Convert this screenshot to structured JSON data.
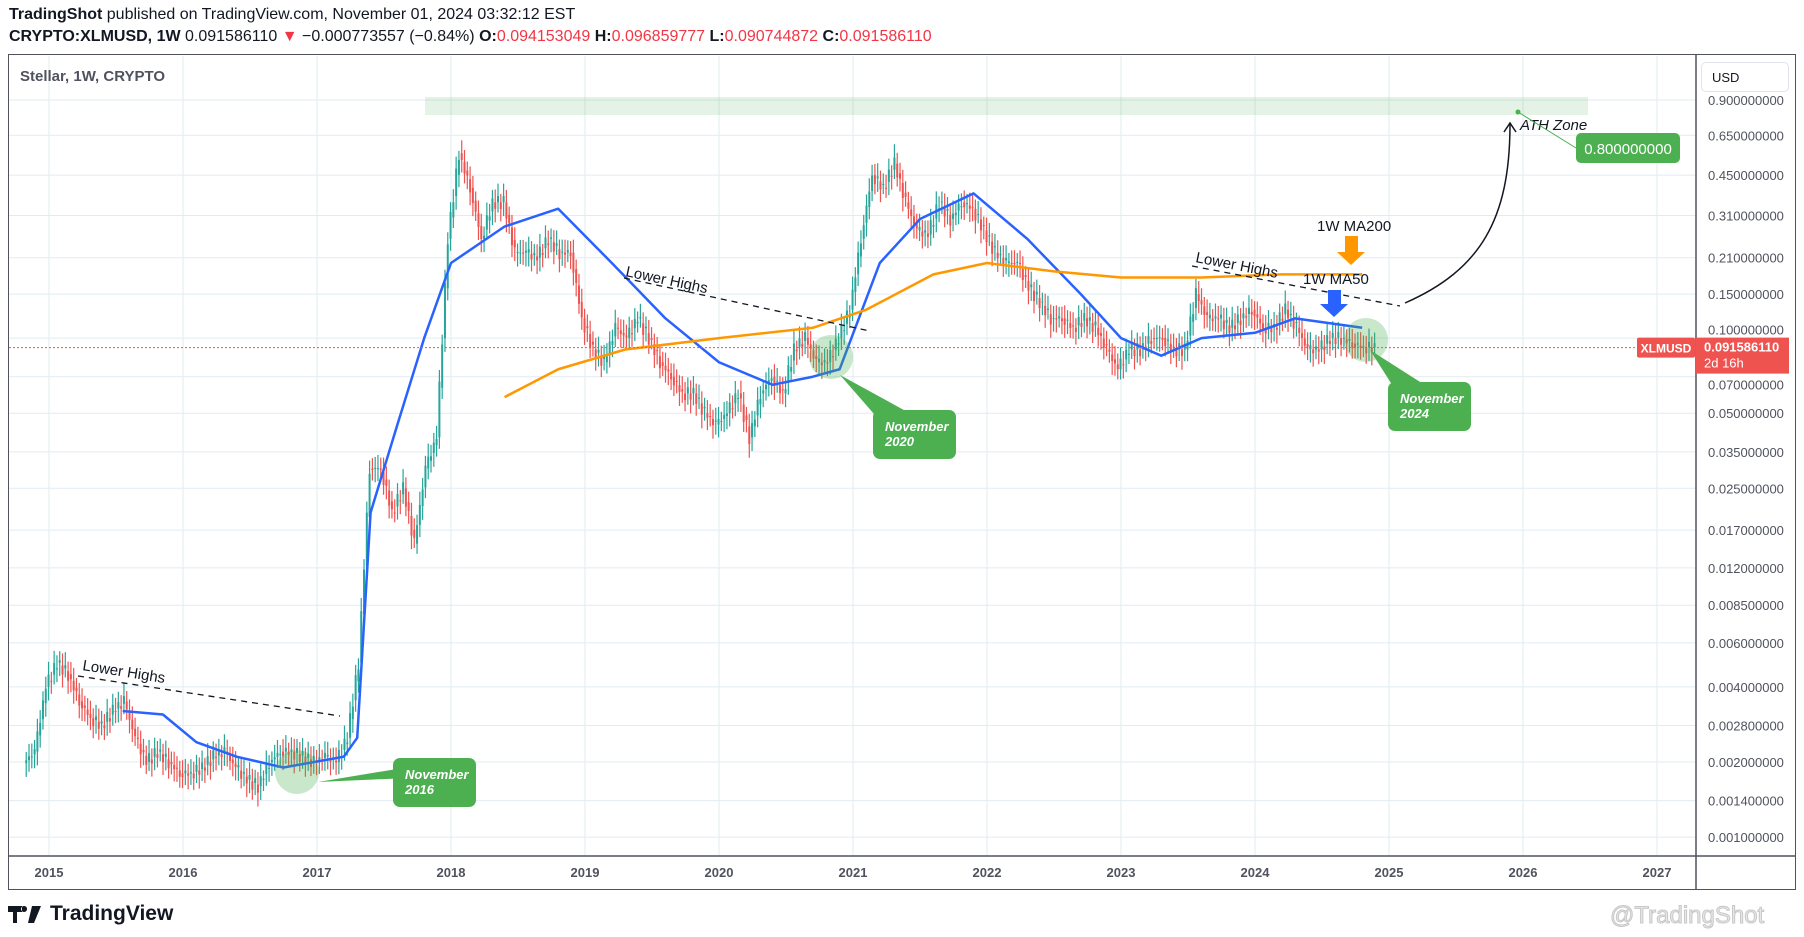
{
  "header": {
    "author": "TradingShot",
    "published": "published on TradingView.com, November 01, 2024 03:32:12 EST",
    "symbol": "CRYPTO:XLMUSD, 1W",
    "last": "0.091586110",
    "change": "−0.000773557 (−0.84%)",
    "o_label": "O:",
    "o": "0.094153049",
    "h_label": "H:",
    "h": "0.096859777",
    "l_label": "L:",
    "l": "0.090744872",
    "c_label": "C:",
    "c": "0.091586110"
  },
  "chart_title": "Stellar, 1W, CRYPTO",
  "currency": "USD",
  "logo": "TradingView",
  "watermark": "@TradingShot",
  "price_tag": {
    "symbol": "XLMUSD",
    "price": "0.091586110",
    "countdown": "2d 16h"
  },
  "colors": {
    "up": "#26a69a",
    "down": "#ef5350",
    "ma50": "#2962ff",
    "ma200": "#ff9800",
    "annot": "#4caf50",
    "grid": "#e1ecf2"
  },
  "annotations": {
    "lower_highs": "Lower Highs",
    "ath_zone": "ATH Zone",
    "ath_price": "0.800000000",
    "ma200": "1W MA200",
    "ma50": "1W MA50",
    "nov2016": [
      "November",
      "2016"
    ],
    "nov2020": [
      "November",
      "2020"
    ],
    "nov2024": [
      "November",
      "2024"
    ]
  },
  "chart_data": {
    "type": "candlestick",
    "scale": "log",
    "ylim": [
      0.001,
      0.9
    ],
    "xlim": [
      2014.95,
      2027.2
    ],
    "y_ticks": [
      "0.900000000",
      "0.650000000",
      "0.450000000",
      "0.310000000",
      "0.210000000",
      "0.150000000",
      "0.100000000",
      "0.070000000",
      "0.050000000",
      "0.035000000",
      "0.025000000",
      "0.017000000",
      "0.012000000",
      "0.008500000",
      "0.006000000",
      "0.004000000",
      "0.002800000",
      "0.002000000",
      "0.001400000",
      "0.001000000"
    ],
    "x_ticks": [
      "2015",
      "2016",
      "2017",
      "2018",
      "2019",
      "2020",
      "2021",
      "2022",
      "2023",
      "2024",
      "2025",
      "2026",
      "2027"
    ],
    "start": 2014.83,
    "monthly_close": [
      0.0022,
      0.004,
      0.005,
      0.0045,
      0.0035,
      0.003,
      0.0028,
      0.0032,
      0.0035,
      0.0025,
      0.002,
      0.0022,
      0.002,
      0.0018,
      0.0018,
      0.0019,
      0.0021,
      0.0022,
      0.0019,
      0.0017,
      0.0016,
      0.002,
      0.0022,
      0.0022,
      0.0021,
      0.002,
      0.0021,
      0.002,
      0.0025,
      0.005,
      0.03,
      0.03,
      0.02,
      0.025,
      0.015,
      0.03,
      0.04,
      0.25,
      0.55,
      0.4,
      0.25,
      0.35,
      0.35,
      0.22,
      0.22,
      0.21,
      0.25,
      0.22,
      0.22,
      0.12,
      0.09,
      0.08,
      0.11,
      0.1,
      0.12,
      0.1,
      0.08,
      0.07,
      0.06,
      0.06,
      0.05,
      0.045,
      0.05,
      0.06,
      0.04,
      0.06,
      0.07,
      0.06,
      0.09,
      0.1,
      0.08,
      0.08,
      0.1,
      0.13,
      0.25,
      0.45,
      0.4,
      0.5,
      0.35,
      0.27,
      0.26,
      0.35,
      0.3,
      0.35,
      0.33,
      0.27,
      0.22,
      0.2,
      0.2,
      0.16,
      0.14,
      0.12,
      0.12,
      0.11,
      0.12,
      0.11,
      0.09,
      0.075,
      0.09,
      0.09,
      0.1,
      0.1,
      0.09,
      0.09,
      0.15,
      0.12,
      0.12,
      0.11,
      0.12,
      0.13,
      0.11,
      0.11,
      0.13,
      0.11,
      0.09,
      0.09,
      0.1,
      0.1,
      0.095,
      0.092,
      0.0916
    ],
    "series": [
      {
        "name": "1W MA50",
        "points": [
          [
            2015.55,
            0.0032
          ],
          [
            2015.85,
            0.0031
          ],
          [
            2016.1,
            0.0024
          ],
          [
            2016.4,
            0.0021
          ],
          [
            2016.75,
            0.0019
          ],
          [
            2017.2,
            0.0021
          ],
          [
            2017.3,
            0.0025
          ],
          [
            2017.4,
            0.02
          ],
          [
            2017.6,
            0.045
          ],
          [
            2017.8,
            0.1
          ],
          [
            2018.0,
            0.2
          ],
          [
            2018.4,
            0.28
          ],
          [
            2018.8,
            0.33
          ],
          [
            2019.2,
            0.2
          ],
          [
            2019.6,
            0.12
          ],
          [
            2020.0,
            0.08
          ],
          [
            2020.4,
            0.065
          ],
          [
            2020.7,
            0.07
          ],
          [
            2020.9,
            0.075
          ],
          [
            2021.2,
            0.2
          ],
          [
            2021.5,
            0.3
          ],
          [
            2021.9,
            0.38
          ],
          [
            2022.3,
            0.25
          ],
          [
            2022.7,
            0.15
          ],
          [
            2023.0,
            0.1
          ],
          [
            2023.3,
            0.085
          ],
          [
            2023.6,
            0.1
          ],
          [
            2024.0,
            0.105
          ],
          [
            2024.3,
            0.12
          ],
          [
            2024.8,
            0.11
          ]
        ]
      },
      {
        "name": "1W MA200",
        "points": [
          [
            2018.4,
            0.058
          ],
          [
            2018.8,
            0.075
          ],
          [
            2019.3,
            0.09
          ],
          [
            2020.0,
            0.1
          ],
          [
            2020.7,
            0.11
          ],
          [
            2021.1,
            0.13
          ],
          [
            2021.6,
            0.18
          ],
          [
            2022.0,
            0.2
          ],
          [
            2022.5,
            0.185
          ],
          [
            2023.0,
            0.175
          ],
          [
            2023.6,
            0.175
          ],
          [
            2024.2,
            0.18
          ],
          [
            2024.8,
            0.18
          ]
        ]
      }
    ],
    "last_price": 0.09158611,
    "ath_zone": [
      0.8,
      0.9
    ]
  }
}
